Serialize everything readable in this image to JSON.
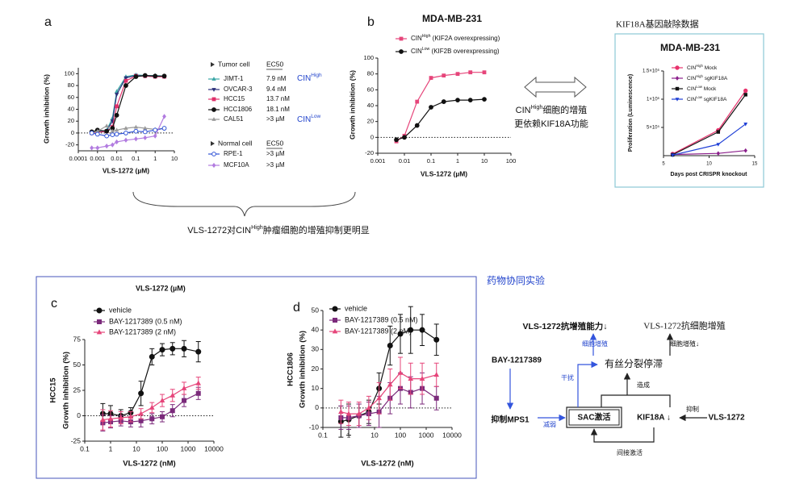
{
  "chart_data": [
    {
      "type": "line",
      "x_scale": "log",
      "xlim": [
        0.0001,
        10
      ],
      "xticks": [
        0.0001,
        0.001,
        0.01,
        0.1,
        1,
        10
      ],
      "ylim": [
        -30,
        110
      ],
      "yticks": [
        -20,
        0,
        20,
        40,
        60,
        80,
        100
      ],
      "zero_line": true,
      "x_label": "VLS-1272 (µM)",
      "y_label": "Growth inhibition (%)",
      "legend_headers": [
        "Tumor cell",
        "EC50",
        "Normal cell",
        "EC50"
      ],
      "cin_labels": [
        {
          "base": "CIN",
          "sup": "High"
        },
        {
          "base": "CIN",
          "sup": "Low"
        }
      ],
      "x": [
        0.0005,
        0.001,
        0.003,
        0.006,
        0.01,
        0.03,
        0.1,
        0.3,
        1,
        3
      ],
      "series": [
        {
          "name": "JIMT-1",
          "ec50": "7.9 nM",
          "color": "#3aa6a6",
          "marker": "triangle",
          "values": [
            0,
            2,
            5,
            25,
            70,
            95,
            98,
            97,
            97,
            96
          ]
        },
        {
          "name": "OVCAR-3",
          "ec50": "9.4 nM",
          "color": "#2b2f7a",
          "marker": "triangle-down",
          "values": [
            0,
            1,
            4,
            20,
            65,
            93,
            97,
            96,
            95,
            95
          ]
        },
        {
          "name": "HCC15",
          "ec50": "13.7 nM",
          "color": "#e0306a",
          "marker": "square",
          "values": [
            0,
            1,
            3,
            10,
            45,
            88,
            96,
            96,
            95,
            95
          ]
        },
        {
          "name": "HCC1806",
          "ec50": "18.1 nM",
          "color": "#111111",
          "marker": "circle",
          "values": [
            2,
            5,
            3,
            8,
            30,
            80,
            95,
            97,
            96,
            96
          ]
        },
        {
          "name": "CAL51",
          "ec50": ">3 µM",
          "color": "#9a9a9a",
          "marker": "triangle",
          "values": [
            0,
            3,
            12,
            3,
            5,
            8,
            10,
            8,
            6,
            8
          ]
        },
        {
          "name": "RPE-1",
          "ec50": ">3 µM",
          "color": "#3355d6",
          "marker": "open-circle",
          "values": [
            0,
            -2,
            -5,
            -3,
            -2,
            0,
            3,
            2,
            5,
            8
          ]
        },
        {
          "name": "MCF10A",
          "ec50": ">3 µM",
          "color": "#b27ce0",
          "marker": "diamond",
          "values": [
            -25,
            -25,
            -22,
            -20,
            -15,
            -12,
            -10,
            -8,
            -5,
            28
          ]
        }
      ]
    },
    {
      "type": "line",
      "x_scale": "log",
      "title": "MDA-MB-231",
      "xlim": [
        0.001,
        100
      ],
      "xticks": [
        0.001,
        0.01,
        0.1,
        1,
        10,
        100
      ],
      "ylim": [
        -20,
        100
      ],
      "yticks": [
        -20,
        0,
        20,
        40,
        60,
        80,
        100
      ],
      "zero_line": true,
      "x_label": "VLS-1272 (µM)",
      "y_label": "Growth inhibition (%)",
      "x": [
        0.005,
        0.01,
        0.03,
        0.1,
        0.3,
        1,
        3,
        10
      ],
      "series": [
        {
          "name": {
            "base": "CIN",
            "sup": "High",
            "rest": " (KIF2A overexpressing)"
          },
          "color": "#e6457a",
          "marker": "square",
          "values": [
            -5,
            2,
            45,
            75,
            78,
            80,
            82,
            82
          ]
        },
        {
          "name": {
            "base": "CIN",
            "sup": "Low",
            "rest": " (KIF2B overexpressing)"
          },
          "color": "#111111",
          "marker": "circle",
          "values": [
            -3,
            0,
            15,
            38,
            45,
            47,
            47,
            48
          ]
        }
      ]
    },
    {
      "type": "line",
      "title": "MDA-MB-231",
      "xlim": [
        5,
        15
      ],
      "xticks": [
        5,
        10,
        15
      ],
      "ylim": [
        0,
        1500000
      ],
      "yticks": [
        {
          "value": 500000,
          "label": "5×10⁵"
        },
        {
          "value": 1000000,
          "label": "1×10⁶"
        },
        {
          "value": 1500000,
          "label": "1.5×10⁶"
        }
      ],
      "x_label": "Days post CRISPR knockout",
      "y_label": "Proliferation (Luminescence)",
      "x": [
        6,
        11,
        14
      ],
      "series": [
        {
          "name": {
            "base": "CIN",
            "sup": "High",
            "rest": " Mock"
          },
          "color": "#e8336d",
          "marker": "circle",
          "values": [
            30000,
            450000,
            1150000
          ]
        },
        {
          "name": {
            "base": "CIN",
            "sup": "High",
            "rest": " sgKIF18A"
          },
          "color": "#8b1f8b",
          "marker": "diamond",
          "values": [
            20000,
            40000,
            90000
          ]
        },
        {
          "name": {
            "base": "CIN",
            "sup": "Low",
            "rest": " Mock"
          },
          "color": "#111111",
          "marker": "square",
          "values": [
            15000,
            420000,
            1080000
          ]
        },
        {
          "name": {
            "base": "CIN",
            "sup": "Low",
            "rest": " sgKIF18A"
          },
          "color": "#1f3fd6",
          "marker": "triangle-down",
          "values": [
            10000,
            200000,
            560000
          ]
        }
      ]
    },
    {
      "type": "line",
      "x_scale": "log",
      "cell_line": "HCC15",
      "xlim": [
        0.1,
        10000
      ],
      "xticks": [
        0.1,
        1,
        10,
        100,
        1000,
        10000
      ],
      "ylim": [
        -25,
        75
      ],
      "yticks": [
        -25,
        0,
        25,
        50,
        75
      ],
      "zero_line": true,
      "x_label": "VLS-1272 (nM)",
      "y_label": "Growth inhibition (%)",
      "x": [
        0.5,
        1,
        2.5,
        6,
        15,
        40,
        100,
        250,
        700,
        2500
      ],
      "series": [
        {
          "name": "vehicle",
          "color": "#111111",
          "marker": "circle",
          "values": [
            2,
            2,
            0,
            3,
            22,
            58,
            65,
            66,
            66,
            63
          ],
          "errors": [
            10,
            8,
            6,
            5,
            12,
            8,
            6,
            6,
            8,
            10
          ]
        },
        {
          "name": "BAY-1217389 (0.5 nM)",
          "color": "#7b2a7b",
          "marker": "square",
          "values": [
            -7,
            -6,
            -5,
            -6,
            -5,
            -3,
            -1,
            5,
            15,
            22
          ],
          "errors": [
            8,
            6,
            5,
            5,
            6,
            5,
            5,
            6,
            6,
            6
          ]
        },
        {
          "name": "BAY-1217389 (2 nM)",
          "color": "#e6457a",
          "marker": "triangle",
          "values": [
            -4,
            -3,
            -2,
            -1,
            2,
            8,
            15,
            20,
            27,
            32
          ],
          "errors": [
            10,
            8,
            6,
            5,
            5,
            5,
            6,
            6,
            6,
            6
          ]
        }
      ]
    },
    {
      "type": "line",
      "x_scale": "log",
      "cell_line": "HCC1806",
      "xlim": [
        0.1,
        10000
      ],
      "xticks": [
        0.1,
        1,
        10,
        100,
        1000,
        10000
      ],
      "ylim": [
        -10,
        50
      ],
      "yticks": [
        -10,
        0,
        10,
        20,
        30,
        40,
        50
      ],
      "zero_line": true,
      "x_label": "VLS-1272 (nM)",
      "y_label": "Growth inhibition (%)",
      "x": [
        0.5,
        1,
        2.5,
        6,
        15,
        40,
        100,
        250,
        700,
        2500
      ],
      "series": [
        {
          "name": "vehicle",
          "color": "#111111",
          "marker": "circle",
          "values": [
            -7,
            -6,
            -4,
            -2,
            10,
            32,
            38,
            40,
            40,
            35
          ],
          "errors": [
            8,
            8,
            6,
            6,
            8,
            10,
            10,
            12,
            8,
            8
          ]
        },
        {
          "name": "BAY-1217389 (0.5 nM)",
          "color": "#7b2a7b",
          "marker": "square",
          "values": [
            -5,
            -5,
            -4,
            -3,
            -2,
            5,
            10,
            8,
            10,
            5
          ],
          "errors": [
            6,
            6,
            6,
            6,
            8,
            8,
            8,
            8,
            8,
            6
          ]
        },
        {
          "name": "BAY-1217389 (2 nM)",
          "color": "#e6457a",
          "marker": "triangle",
          "values": [
            -2,
            -3,
            -3,
            0,
            5,
            12,
            18,
            15,
            15,
            17
          ],
          "errors": [
            6,
            6,
            6,
            6,
            8,
            8,
            8,
            8,
            8,
            6
          ]
        }
      ]
    }
  ],
  "annotations": {
    "panel_labels": [
      "a",
      "b",
      "c",
      "d"
    ],
    "summary": {
      "pre": "VLS-1272对",
      "base": "CIN",
      "sup": "High",
      "rest": "肿瘤细胞的增殖抑制更明显"
    },
    "dependence": [
      {
        "base": "CIN",
        "sup": "High",
        "rest": "细胞的增殖"
      },
      "更依赖KIF18A功能"
    ],
    "knockout_header": "KIF18A基因敲除数据",
    "synergy_dose_label": "VLS-1272 (µM)"
  },
  "diagram": {
    "title": "药物协同实验",
    "nodes": [
      "VLS-1272抗增殖能力↓",
      "VLS-1272抗细胞增殖",
      "BAY-1217389",
      "有丝分裂停滞",
      "抑制MPS1",
      "SAC激活",
      "KIF18A ↓",
      "VLS-1272"
    ],
    "edge_labels": [
      "细胞增殖",
      "细胞增殖↓",
      "干扰",
      "造成",
      "减弱",
      "抑制",
      "间接激活"
    ]
  }
}
